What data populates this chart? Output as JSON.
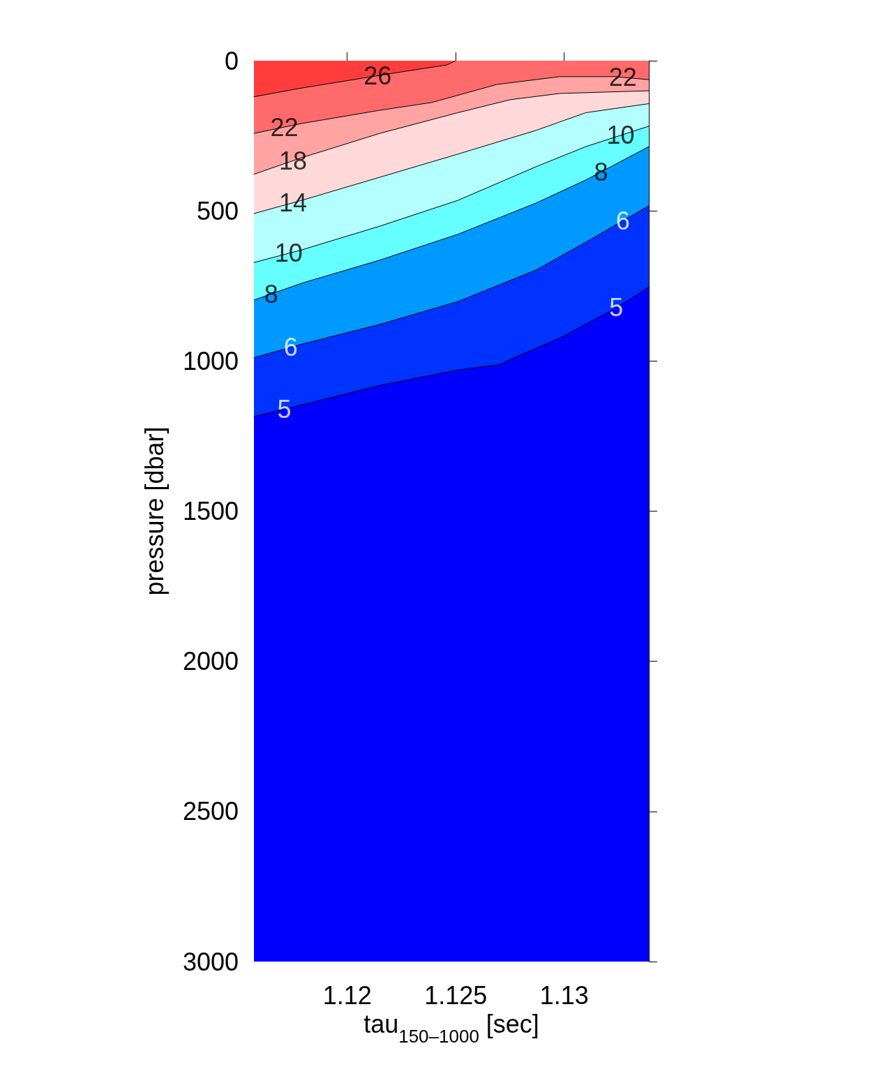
{
  "chart_data": {
    "type": "area",
    "xlabel": "tau$_{150–1000}$ [sec]",
    "ylabel": "pressure [dbar]",
    "xlim": [
      1.1157,
      1.1339
    ],
    "xticks": [
      1.12,
      1.125,
      1.13
    ],
    "ylim": [
      3000,
      0
    ],
    "yticks": [
      0,
      500,
      1000,
      1500,
      2000,
      2500,
      3000
    ],
    "grid": false,
    "marker": "none",
    "line_style": "solid",
    "bands": [
      {
        "axis": "y",
        "from": 0,
        "to": 3000,
        "color": "#0000ff",
        "label": null
      }
    ],
    "series": [
      {
        "color": "#0033ff",
        "x": [
          1.1157,
          1.1179,
          1.1215,
          1.1251,
          1.127,
          1.1275,
          1.1298,
          1.1323,
          1.1339
        ],
        "values": [
          1185,
          1146,
          1081,
          1030,
          1012,
          995,
          923,
          827,
          754
        ]
      },
      {
        "color": "#0099ff",
        "x": [
          1.1157,
          1.1179,
          1.1215,
          1.1251,
          1.1287,
          1.131,
          1.1339
        ],
        "values": [
          989,
          944,
          878,
          802,
          697,
          604,
          483
        ]
      },
      {
        "color": "#66ffff",
        "x": [
          1.1157,
          1.1179,
          1.1215,
          1.1251,
          1.1287,
          1.131,
          1.1339
        ],
        "values": [
          797,
          741,
          664,
          578,
          474,
          397,
          286
        ]
      },
      {
        "color": "#b3ffff",
        "x": [
          1.1157,
          1.1179,
          1.1215,
          1.1251,
          1.1287,
          1.131,
          1.1339
        ],
        "values": [
          672,
          630,
          551,
          465,
          353,
          286,
          218
        ]
      },
      {
        "color": "#ffd9d9",
        "x": [
          1.1157,
          1.1179,
          1.1215,
          1.1251,
          1.1287,
          1.131,
          1.1339
        ],
        "values": [
          509,
          465,
          388,
          311,
          232,
          173,
          143
        ]
      },
      {
        "color": "#ffa3a3",
        "x": [
          1.1157,
          1.1179,
          1.1215,
          1.1251,
          1.1275,
          1.1298,
          1.1339
        ],
        "values": [
          378,
          323,
          242,
          173,
          130,
          109,
          100
        ]
      },
      {
        "color": "#ff6b6b",
        "x": [
          1.1157,
          1.1179,
          1.1215,
          1.1239,
          1.1269,
          1.1298,
          1.1323,
          1.1339
        ],
        "values": [
          242,
          209,
          165,
          139,
          79,
          53,
          53,
          63
        ]
      },
      {
        "color": "#ff3d3d",
        "x": [
          1.1157,
          1.1179,
          1.1208,
          1.1227,
          1.1246,
          1.125
        ],
        "values": [
          120,
          91,
          57,
          35,
          14,
          0
        ]
      }
    ],
    "annotations": [
      {
        "text": "26",
        "x": 1.1214,
        "y": 50
      },
      {
        "text": "22",
        "x": 1.1327,
        "y": 55
      },
      {
        "text": "22",
        "x": 1.1171,
        "y": 221
      },
      {
        "text": "18",
        "x": 1.1175,
        "y": 333
      },
      {
        "text": "14",
        "x": 1.1175,
        "y": 473
      },
      {
        "text": "10",
        "x": 1.1173,
        "y": 641
      },
      {
        "text": "10",
        "x": 1.1326,
        "y": 248
      },
      {
        "text": "8",
        "x": 1.1165,
        "y": 777
      },
      {
        "text": "8",
        "x": 1.1317,
        "y": 370
      },
      {
        "text": "6",
        "x": 1.1174,
        "y": 954
      },
      {
        "text": "6",
        "x": 1.1327,
        "y": 533
      },
      {
        "text": "5",
        "x": 1.1171,
        "y": 1160
      },
      {
        "text": "5",
        "x": 1.1324,
        "y": 822
      }
    ]
  }
}
